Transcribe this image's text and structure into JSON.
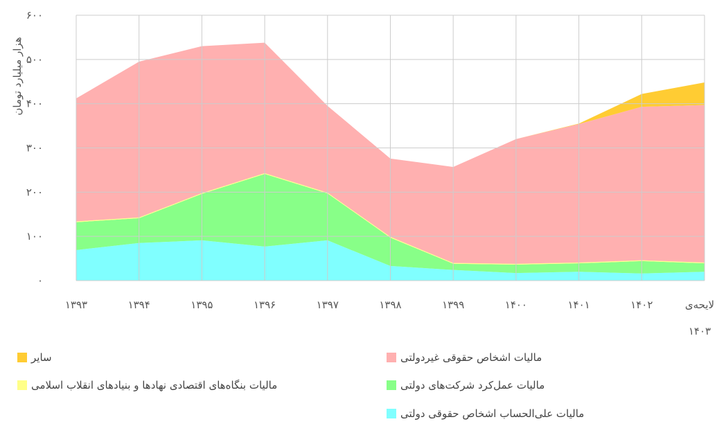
{
  "chart_data": {
    "type": "area",
    "stacked": true,
    "y_label": "هزار میلیارد تومان",
    "categories": [
      "۱۳۹۳",
      "۱۳۹۴",
      "۱۳۹۵",
      "۱۳۹۶",
      "۱۳۹۷",
      "۱۳۹۸",
      "۱۳۹۹",
      "۱۴۰۰",
      "۱۴۰۱",
      "۱۴۰۲",
      "لایحه‌ی ۱۴۰۳"
    ],
    "series": [
      {
        "name": "مالیات علی‌الحساب اشخاص حقوقی دولتی",
        "color": "#80ffff",
        "values": [
          69,
          85,
          91,
          77,
          91,
          33,
          24,
          17,
          20,
          16,
          20
        ]
      },
      {
        "name": "مالیات عمل‌کرد شرکت‌های دولتی",
        "color": "#88ff88",
        "values": [
          63,
          56,
          105,
          164,
          106,
          64,
          14,
          19,
          19,
          28,
          19
        ]
      },
      {
        "name": "مالیات بنگاه‌های اقتصادی نهادها و بنیادهای انقلاب اسلامی",
        "color": "#ffff88",
        "values": [
          2,
          2,
          2,
          2,
          2,
          2,
          2,
          2,
          2,
          2,
          2
        ]
      },
      {
        "name": "مالیات اشخاص حقوقی غیردولتی",
        "color": "#ffb0b0",
        "values": [
          278,
          352,
          332,
          295,
          196,
          177,
          217,
          282,
          313,
          347,
          356
        ]
      },
      {
        "name": "سایر",
        "color": "#ffcc33",
        "values": [
          0,
          0,
          0,
          0,
          0,
          0,
          0,
          0,
          1,
          29,
          51
        ]
      }
    ],
    "ylim": [
      0,
      600
    ],
    "yticks": [
      {
        "value": 0,
        "label": "۰"
      },
      {
        "value": 100,
        "label": "۱۰۰"
      },
      {
        "value": 200,
        "label": "۲۰۰"
      },
      {
        "value": 300,
        "label": "۳۰۰"
      },
      {
        "value": 400,
        "label": "۴۰۰"
      },
      {
        "value": 500,
        "label": "۵۰۰"
      },
      {
        "value": 600,
        "label": "۶۰۰"
      }
    ],
    "grid": true
  }
}
